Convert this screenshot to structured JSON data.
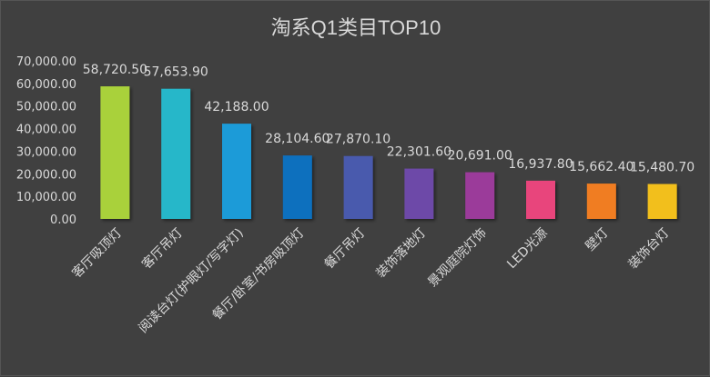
{
  "chart_data": {
    "type": "bar",
    "title": "淘系Q1类目TOP10",
    "categories": [
      "客厅吸顶灯",
      "客厅吊灯",
      "阅读台灯(护眼灯/写字灯)",
      "餐厅/卧室/书房吸顶灯",
      "餐厅吊灯",
      "装饰落地灯",
      "景观庭院灯饰",
      "LED光源",
      "壁灯",
      "装饰台灯"
    ],
    "values": [
      58720.5,
      57653.9,
      42188.0,
      28104.6,
      27870.1,
      22301.6,
      20691.0,
      16937.8,
      15662.4,
      15480.7
    ],
    "value_labels": [
      "58,720.50",
      "57,653.90",
      "42,188.00",
      "28,104.60",
      "27,870.10",
      "22,301.60",
      "20,691.00",
      "16,937.80",
      "15,662.40",
      "15,480.70"
    ],
    "bar_colors": [
      "#a9d13a",
      "#25b7c9",
      "#1a9bd8",
      "#0b6fbe",
      "#4a5aad",
      "#6d4aa8",
      "#9b3a9a",
      "#e8447c",
      "#f07d20",
      "#f2bf1d"
    ],
    "ylim": [
      0,
      70000
    ],
    "yticks": [
      "0.00",
      "10,000.00",
      "20,000.00",
      "30,000.00",
      "40,000.00",
      "50,000.00",
      "60,000.00",
      "70,000.00"
    ],
    "xlabel": "",
    "ylabel": "",
    "grid": false,
    "legend": "none"
  }
}
